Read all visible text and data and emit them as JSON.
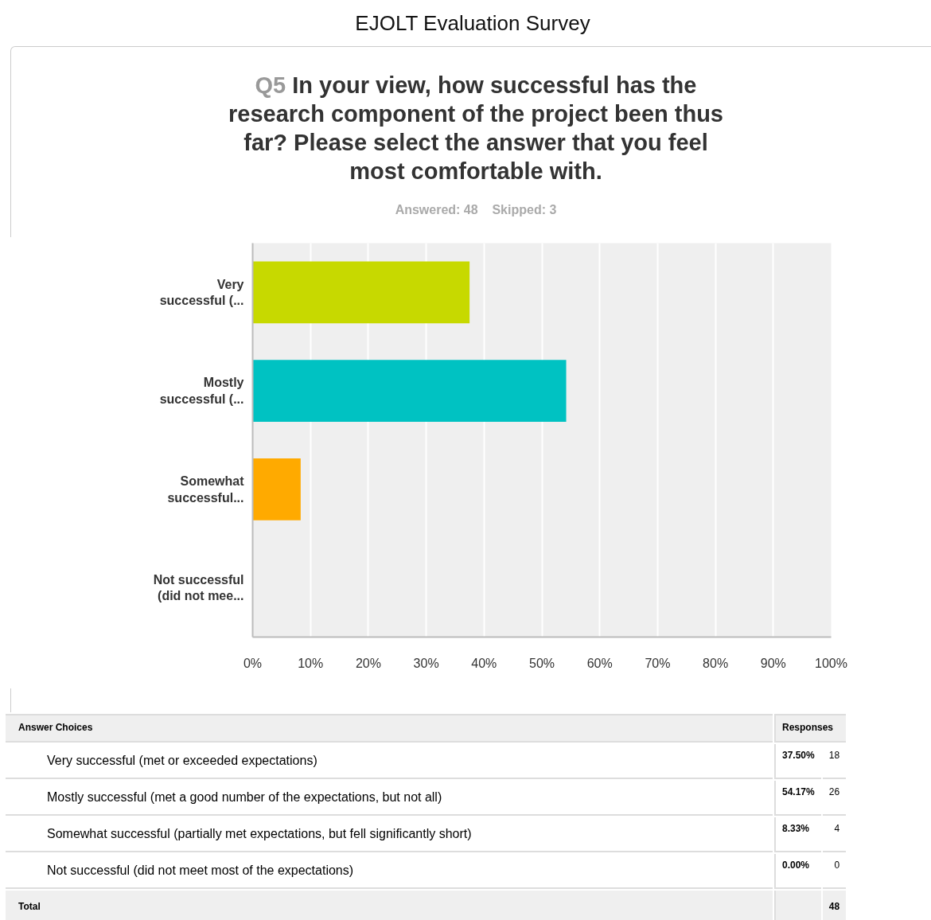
{
  "chart_data": {
    "type": "bar",
    "orientation": "horizontal",
    "title": "EJOLT Evaluation Survey",
    "subtitle": "Q5 In your view, how successful has the research component of the project been thus far? Please select the answer that you feel most comfortable with.",
    "categories": [
      "Very successful (...",
      "Mostly successful (...",
      "Somewhat successful...",
      "Not successful (did not mee..."
    ],
    "values": [
      37.5,
      54.2,
      8.3,
      0
    ],
    "colors": [
      "#c7d900",
      "#00c2c2",
      "#ffaa00",
      "#e7344b"
    ],
    "xlim": [
      0,
      100
    ],
    "xticks": [
      {
        "value": 0,
        "label": "0%"
      },
      {
        "value": 10,
        "label": "10%"
      },
      {
        "value": 20,
        "label": "20%"
      },
      {
        "value": 30,
        "label": "30%"
      },
      {
        "value": 40,
        "label": "40%"
      },
      {
        "value": 50,
        "label": "50%"
      },
      {
        "value": 60,
        "label": "60%"
      },
      {
        "value": 70,
        "label": "70%"
      },
      {
        "value": 80,
        "label": "80%"
      },
      {
        "value": 90,
        "label": "90%"
      },
      {
        "value": 100,
        "label": "100%"
      }
    ],
    "grid": "x",
    "annotations": [
      "Answered: 48",
      "Skipped: 3",
      "Answer Choices",
      "Responses",
      "Very successful (met or exceeded expectations)",
      "Mostly successful (met a good number of the expectations, but not all)",
      "Somewhat successful (partially met expectations, but fell significantly short)",
      "Not successful (did not meet most of the expectations)",
      "37.50%",
      "54.17%",
      "8.33%",
      "0.00%",
      "18",
      "26",
      "4",
      "0",
      "Total",
      "48"
    ]
  }
}
